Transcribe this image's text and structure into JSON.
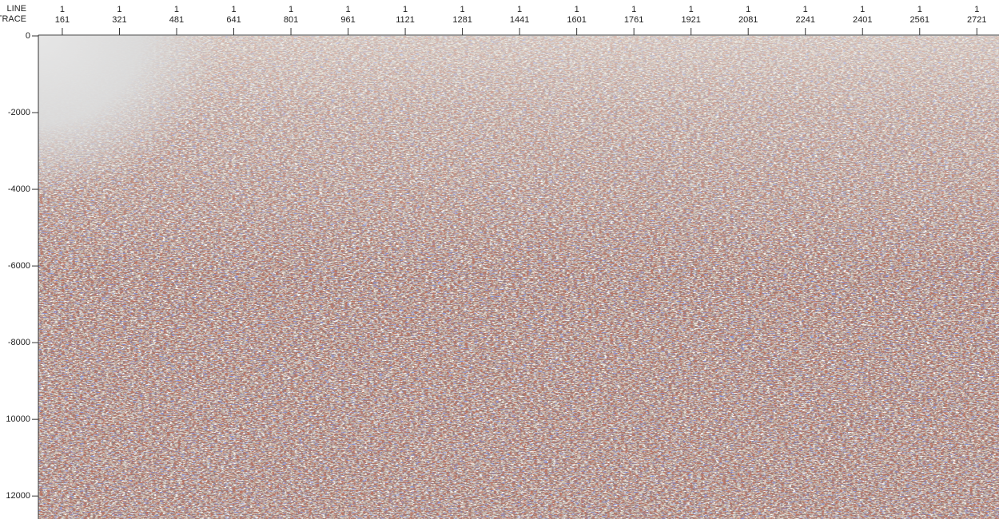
{
  "chart_data": {
    "type": "seismic",
    "x_axis_labels": [
      "LINE",
      "TRACE"
    ],
    "line_labels": [
      1,
      1,
      1,
      1,
      1,
      1,
      1,
      1,
      1,
      1,
      1,
      1,
      1,
      1,
      1,
      1,
      1
    ],
    "xticks": [
      161,
      321,
      481,
      641,
      801,
      961,
      1121,
      1281,
      1441,
      1601,
      1761,
      1921,
      2081,
      2241,
      2401,
      2561,
      2721
    ],
    "xlim": [
      94,
      2783
    ],
    "yticks": [
      0,
      -2000,
      -4000,
      -6000,
      -8000,
      {
        "value": -10000,
        "label": "10000"
      },
      {
        "value": -12000,
        "label": "12000"
      }
    ],
    "ylim": [
      0,
      -12600
    ]
  }
}
